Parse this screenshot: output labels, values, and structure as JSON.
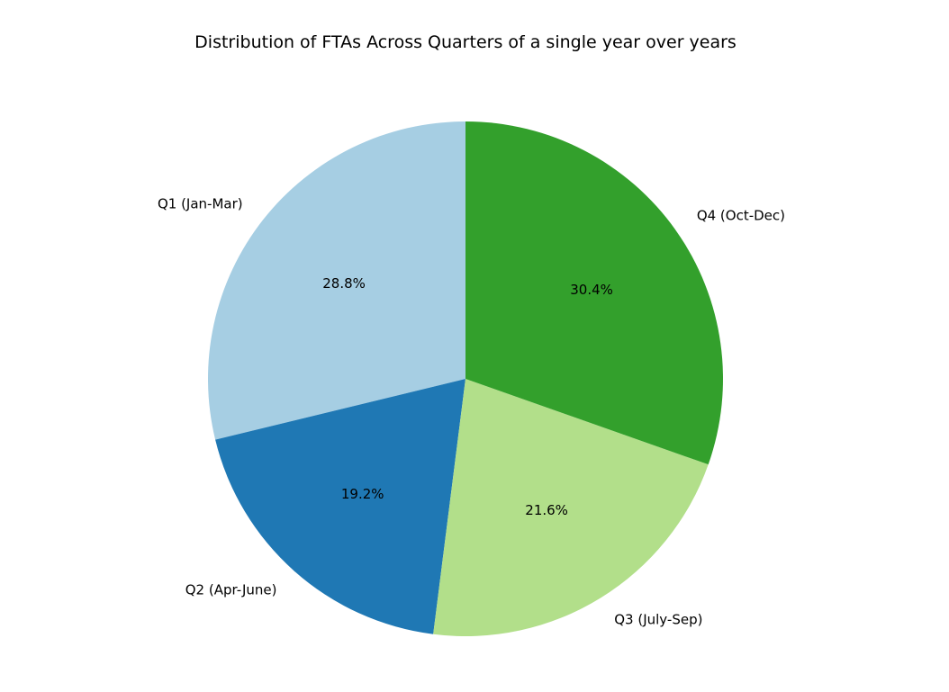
{
  "chart_data": {
    "type": "pie",
    "title": "Distribution of FTAs Across Quarters of a single year over years",
    "labels": [
      "Q1 (Jan-Mar)",
      "Q2 (Apr-June)",
      "Q3 (July-Sep)",
      "Q4 (Oct-Dec)"
    ],
    "values": [
      28.8,
      19.2,
      21.6,
      30.4
    ],
    "percent_labels": [
      "28.8%",
      "19.2%",
      "21.6%",
      "30.4%"
    ],
    "colors": [
      "#a6cee3",
      "#1f78b4",
      "#b2df8a",
      "#33a02c"
    ],
    "start_angle": 90,
    "direction": "counterclockwise",
    "legend": "none"
  }
}
